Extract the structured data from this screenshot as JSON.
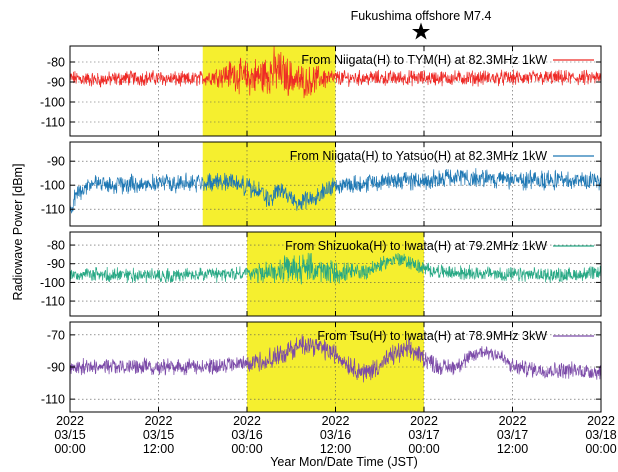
{
  "figure": {
    "event_label": "Fukushima offshore M7.4",
    "event_marker": "star-icon",
    "event_x": 48,
    "ylabel": "Radiowave Power [dBm]",
    "xlabel": "Year Mon/Date Time (JST)"
  },
  "colors": {
    "highlight": "#f5ef2f",
    "red": "#ee2a26",
    "blue": "#1f78b4",
    "green": "#27a884",
    "purple": "#7b4aa8"
  },
  "chart_data": [
    {
      "type": "line",
      "legend": "From Niigata(H) to TYM(H) at 82.3MHz 1kW",
      "color_key": "red",
      "x_unit": "hours since 2022-03-15 00:00 JST",
      "xlim": [
        0,
        72
      ],
      "ylim": [
        -117,
        -72
      ],
      "yticks": [
        -80,
        -90,
        -100,
        -110
      ],
      "highlight": [
        18,
        36
      ],
      "grid": true,
      "legend_position": "top-right",
      "x": [
        0,
        4,
        8,
        12,
        16,
        18,
        20,
        22,
        24,
        26,
        28,
        30,
        32,
        34,
        36,
        40,
        44,
        48,
        52,
        56,
        60,
        64,
        68,
        72
      ],
      "values": [
        -88,
        -89,
        -88,
        -88,
        -89,
        -88,
        -87,
        -86,
        -88,
        -87,
        -84,
        -88,
        -90,
        -88,
        -88,
        -88,
        -88,
        -88,
        -88,
        -88,
        -88,
        -88,
        -88,
        -88
      ],
      "noise": [
        3,
        3,
        3,
        3,
        3,
        3,
        4,
        6,
        7,
        8,
        9,
        7,
        6,
        5,
        3,
        3,
        3,
        3,
        3,
        3,
        3,
        3,
        3,
        3
      ]
    },
    {
      "type": "line",
      "legend": "From Niigata(H) to Yatsuo(H) at 82.3MHz 1kW",
      "color_key": "blue",
      "x_unit": "hours since 2022-03-15 00:00 JST",
      "xlim": [
        0,
        72
      ],
      "ylim": [
        -117,
        -82
      ],
      "yticks": [
        -90,
        -100,
        -110
      ],
      "highlight": [
        18,
        36
      ],
      "grid": true,
      "legend_position": "top-right",
      "x": [
        0,
        1,
        3,
        6,
        12,
        18,
        22,
        24,
        26,
        27,
        28,
        30,
        31,
        32,
        34,
        36,
        40,
        44,
        48,
        52,
        56,
        60,
        64,
        68,
        72
      ],
      "values": [
        -111,
        -103,
        -99,
        -100,
        -99,
        -99,
        -98,
        -101,
        -103,
        -107,
        -102,
        -105,
        -108,
        -106,
        -103,
        -100,
        -99,
        -98,
        -98,
        -97,
        -97,
        -98,
        -98,
        -98,
        -98
      ],
      "noise": [
        3,
        3,
        3,
        3,
        3,
        3,
        3,
        3,
        3,
        3,
        3,
        3,
        3,
        3,
        3,
        3,
        3,
        3,
        3,
        3,
        3,
        3,
        3,
        3,
        3
      ]
    },
    {
      "type": "line",
      "legend": "From Shizuoka(H) to Iwata(H) at 79.2MHz 1kW",
      "color_key": "green",
      "x_unit": "hours since 2022-03-15 00:00 JST",
      "xlim": [
        0,
        72
      ],
      "ylim": [
        -118,
        -73
      ],
      "yticks": [
        -80,
        -90,
        -100,
        -110
      ],
      "highlight": [
        24,
        48
      ],
      "grid": true,
      "legend_position": "top-right",
      "x": [
        0,
        4,
        8,
        12,
        16,
        20,
        24,
        26,
        28,
        30,
        32,
        34,
        36,
        38,
        40,
        42,
        44,
        46,
        48,
        52,
        56,
        60,
        64,
        68,
        72
      ],
      "values": [
        -96,
        -96,
        -96,
        -96,
        -96,
        -96,
        -95,
        -95,
        -94,
        -93,
        -92,
        -94,
        -95,
        -95,
        -94,
        -91,
        -87,
        -89,
        -93,
        -95,
        -95,
        -96,
        -96,
        -96,
        -95
      ],
      "noise": [
        3,
        3,
        3,
        3,
        3,
        3,
        3,
        4,
        5,
        6,
        6,
        6,
        5,
        4,
        4,
        3,
        3,
        3,
        3,
        3,
        3,
        3,
        3,
        3,
        3
      ]
    },
    {
      "type": "line",
      "legend": "From Tsu(H) to Iwata(H) at 78.9MHz 3kW",
      "color_key": "purple",
      "x_unit": "hours since 2022-03-15 00:00 JST",
      "xlim": [
        0,
        72
      ],
      "ylim": [
        -118,
        -62
      ],
      "yticks": [
        -70,
        -90,
        -110
      ],
      "highlight": [
        24,
        48
      ],
      "grid": true,
      "legend_position": "top-right",
      "x": [
        0,
        6,
        12,
        18,
        22,
        24,
        26,
        28,
        30,
        32,
        34,
        36,
        38,
        40,
        42,
        44,
        46,
        48,
        50,
        52,
        54,
        56,
        58,
        60,
        64,
        68,
        72
      ],
      "values": [
        -90,
        -90,
        -90,
        -90,
        -89,
        -88,
        -86,
        -84,
        -79,
        -75,
        -78,
        -82,
        -89,
        -94,
        -89,
        -82,
        -79,
        -84,
        -90,
        -90,
        -85,
        -80,
        -82,
        -90,
        -92,
        -92,
        -93
      ],
      "noise": [
        4,
        4,
        4,
        4,
        4,
        4,
        5,
        5,
        5,
        5,
        5,
        5,
        5,
        5,
        5,
        5,
        5,
        5,
        4,
        4,
        4,
        4,
        4,
        4,
        4,
        4,
        4
      ]
    }
  ],
  "x_axis": {
    "ticks": [
      {
        "x": 0,
        "line1": "2022",
        "line2": "03/15",
        "line3": "00:00"
      },
      {
        "x": 12,
        "line1": "2022",
        "line2": "03/15",
        "line3": "12:00"
      },
      {
        "x": 24,
        "line1": "2022",
        "line2": "03/16",
        "line3": "00:00"
      },
      {
        "x": 36,
        "line1": "2022",
        "line2": "03/16",
        "line3": "12:00"
      },
      {
        "x": 48,
        "line1": "2022",
        "line2": "03/17",
        "line3": "00:00"
      },
      {
        "x": 60,
        "line1": "2022",
        "line2": "03/17",
        "line3": "12:00"
      },
      {
        "x": 72,
        "line1": "2022",
        "line2": "03/18",
        "line3": "00:00"
      }
    ]
  }
}
